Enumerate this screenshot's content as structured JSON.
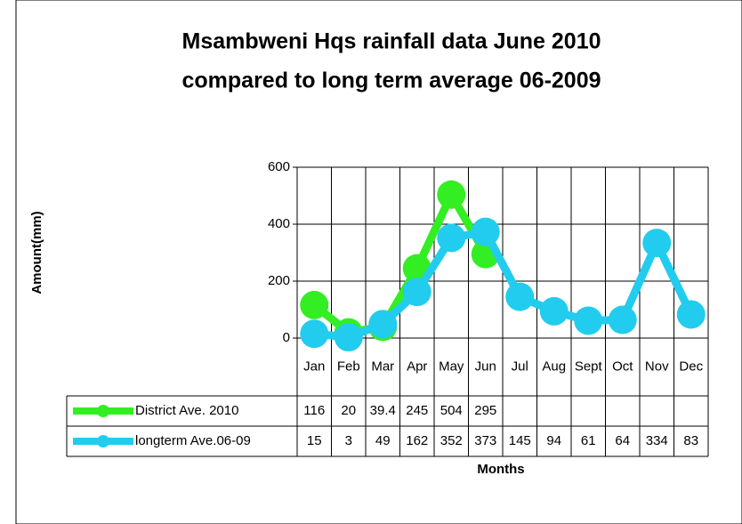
{
  "chart_data": {
    "type": "line",
    "title": [
      "Msambweni Hqs rainfall data June 2010",
      "compared to long term average 06-2009"
    ],
    "y_label": "Amount(mm)",
    "x_label": "Months",
    "categories": [
      "Jan",
      "Feb",
      "Mar",
      "Apr",
      "May",
      "Jun",
      "Jul",
      "Aug",
      "Sept",
      "Oct",
      "Nov",
      "Dec"
    ],
    "series": [
      {
        "name": "District Ave. 2010",
        "color": "#33ee22",
        "values": [
          116,
          20,
          39.4,
          245,
          504,
          295,
          null,
          null,
          null,
          null,
          null,
          null
        ]
      },
      {
        "name": "longterm Ave.06-09",
        "color": "#22ccee",
        "values": [
          15,
          3,
          49,
          162,
          352,
          373,
          145,
          94,
          61,
          64,
          334,
          83
        ]
      }
    ],
    "ylim": [
      0,
      600
    ],
    "yticks": [
      0,
      200,
      400,
      600
    ],
    "grid": true
  }
}
